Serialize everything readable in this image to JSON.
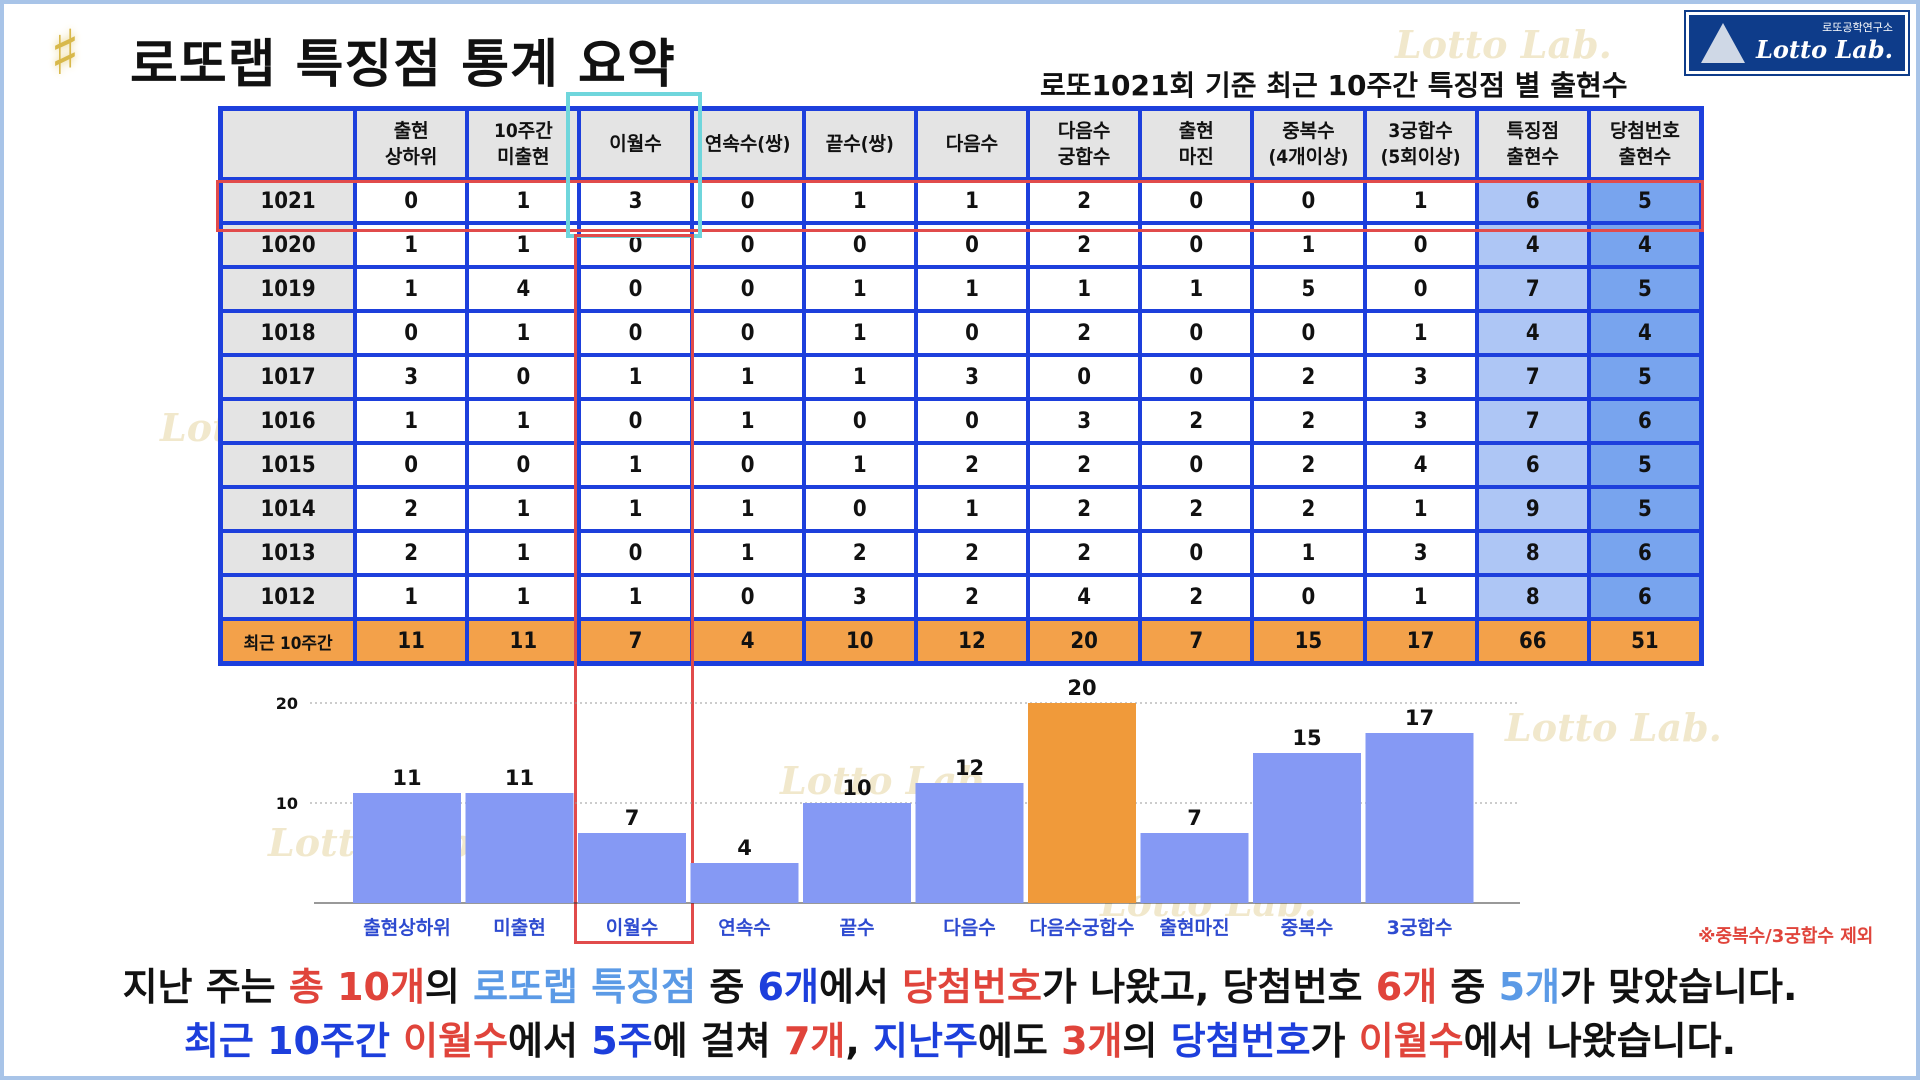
{
  "header": {
    "title": "로또랩 특징점 통계 요약",
    "subtitle": "로또1021회 기준 최근 10주간 특징점 별 출현수",
    "logo_small": "로또공학연구소",
    "logo_big": "Lotto Lab.",
    "watermark": "Lotto Lab.",
    "title_icon": "lotto-lab-emblem-icon"
  },
  "table": {
    "headers": [
      "",
      "출현\n상하위",
      "10주간\n미출현",
      "이월수",
      "연속수(쌍)",
      "끝수(쌍)",
      "다음수",
      "다음수\n궁합수",
      "출현\n마진",
      "중복수\n(4개이상)",
      "3궁합수\n(5회이상)",
      "특징점\n출현수",
      "당첨번호\n출현수"
    ],
    "rows": [
      {
        "round": "1021",
        "values": [
          "0",
          "1",
          "3",
          "0",
          "1",
          "1",
          "2",
          "0",
          "0",
          "1",
          "6",
          "5"
        ]
      },
      {
        "round": "1020",
        "values": [
          "1",
          "1",
          "0",
          "0",
          "0",
          "0",
          "2",
          "0",
          "1",
          "0",
          "4",
          "4"
        ]
      },
      {
        "round": "1019",
        "values": [
          "1",
          "4",
          "0",
          "0",
          "1",
          "1",
          "1",
          "1",
          "5",
          "0",
          "7",
          "5"
        ]
      },
      {
        "round": "1018",
        "values": [
          "0",
          "1",
          "0",
          "0",
          "1",
          "0",
          "2",
          "0",
          "0",
          "1",
          "4",
          "4"
        ]
      },
      {
        "round": "1017",
        "values": [
          "3",
          "0",
          "1",
          "1",
          "1",
          "3",
          "0",
          "0",
          "2",
          "3",
          "7",
          "5"
        ]
      },
      {
        "round": "1016",
        "values": [
          "1",
          "1",
          "0",
          "1",
          "0",
          "0",
          "3",
          "2",
          "2",
          "3",
          "7",
          "6"
        ]
      },
      {
        "round": "1015",
        "values": [
          "0",
          "0",
          "1",
          "0",
          "1",
          "2",
          "2",
          "0",
          "2",
          "4",
          "6",
          "5"
        ]
      },
      {
        "round": "1014",
        "values": [
          "2",
          "1",
          "1",
          "1",
          "0",
          "1",
          "2",
          "2",
          "2",
          "1",
          "9",
          "5"
        ]
      },
      {
        "round": "1013",
        "values": [
          "2",
          "1",
          "0",
          "1",
          "2",
          "2",
          "2",
          "0",
          "1",
          "3",
          "8",
          "6"
        ]
      },
      {
        "round": "1012",
        "values": [
          "1",
          "1",
          "1",
          "0",
          "3",
          "2",
          "4",
          "2",
          "0",
          "1",
          "8",
          "6"
        ]
      }
    ],
    "totals": {
      "label": "최근 10주간",
      "values": [
        "11",
        "11",
        "7",
        "4",
        "10",
        "12",
        "20",
        "7",
        "15",
        "17",
        "66",
        "51"
      ]
    }
  },
  "chart_data": {
    "type": "bar",
    "categories": [
      "출현상하위",
      "미출현",
      "이월수",
      "연속수",
      "끝수",
      "다음수",
      "다음수궁합수",
      "출현마진",
      "중복수",
      "3궁합수"
    ],
    "values": [
      11,
      11,
      7,
      4,
      10,
      12,
      20,
      7,
      15,
      17
    ],
    "highlighted_category": "다음수궁합수",
    "ylim": [
      0,
      20
    ],
    "yticks": [
      10,
      20
    ],
    "grid": true,
    "colors": {
      "bar": "#8599f4",
      "highlight": "#f09a3a",
      "label": "#2e4bd0"
    }
  },
  "footnote": "※중복수/3궁합수 제외",
  "summary": {
    "line1": [
      {
        "t": "지난 주는 ",
        "c": ""
      },
      {
        "t": "총 10개",
        "c": "hl-red"
      },
      {
        "t": "의 ",
        "c": ""
      },
      {
        "t": "로또랩 특징점",
        "c": "hl-sky"
      },
      {
        "t": " 중 ",
        "c": ""
      },
      {
        "t": "6개",
        "c": "hl-blue"
      },
      {
        "t": "에서 ",
        "c": ""
      },
      {
        "t": "당첨번호",
        "c": "hl-red"
      },
      {
        "t": "가 나왔고, 당첨번호 ",
        "c": ""
      },
      {
        "t": "6개",
        "c": "hl-red"
      },
      {
        "t": " 중 ",
        "c": ""
      },
      {
        "t": "5개",
        "c": "hl-sky"
      },
      {
        "t": "가 맞았습니다.",
        "c": ""
      }
    ],
    "line2": [
      {
        "t": "최근 10주간 ",
        "c": "hl-blue"
      },
      {
        "t": "이월수",
        "c": "hl-red"
      },
      {
        "t": "에서 ",
        "c": ""
      },
      {
        "t": "5주",
        "c": "hl-blue"
      },
      {
        "t": "에 걸쳐 ",
        "c": ""
      },
      {
        "t": "7개",
        "c": "hl-red"
      },
      {
        "t": ", ",
        "c": ""
      },
      {
        "t": "지난주",
        "c": "hl-blue"
      },
      {
        "t": "에도 ",
        "c": ""
      },
      {
        "t": "3개",
        "c": "hl-red"
      },
      {
        "t": "의 ",
        "c": ""
      },
      {
        "t": "당첨번호",
        "c": "hl-blue"
      },
      {
        "t": "가 ",
        "c": ""
      },
      {
        "t": "이월수",
        "c": "hl-red"
      },
      {
        "t": "에서 나왔습니다.",
        "c": ""
      }
    ]
  }
}
